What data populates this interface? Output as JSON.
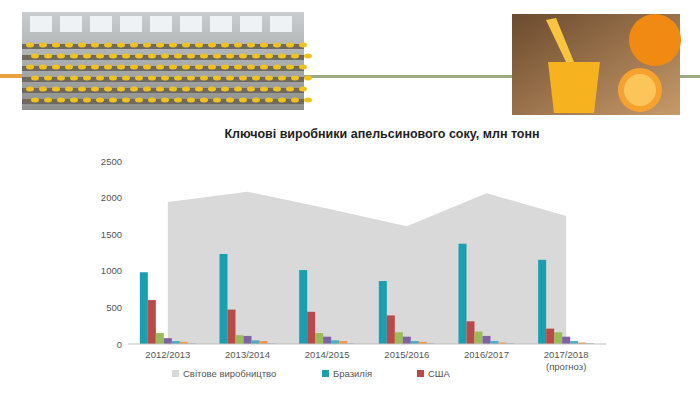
{
  "chart_data": {
    "type": "bar",
    "title": "Ключові виробники апельсинового соку, млн тонн",
    "categories": [
      "2012/2013",
      "2013/2014",
      "2014/2015",
      "2015/2016",
      "2016/2017",
      "2017/2018\n(прогноз)"
    ],
    "series": [
      {
        "name": "Світове виробництво",
        "type": "area",
        "color": "#d9d9d9",
        "values": [
          1940,
          2080,
          1850,
          1610,
          2060,
          1750
        ]
      },
      {
        "name": "Бразилія",
        "type": "bar",
        "color": "#1a9fb0",
        "values": [
          980,
          1230,
          1010,
          860,
          1370,
          1150
        ]
      },
      {
        "name": "США",
        "type": "bar",
        "color": "#b94a48",
        "values": [
          600,
          470,
          440,
          390,
          310,
          210
        ]
      },
      {
        "type": "bar",
        "color": "#9bbb59",
        "values": [
          150,
          120,
          150,
          160,
          170,
          160
        ]
      },
      {
        "type": "bar",
        "color": "#7e62a1",
        "values": [
          80,
          110,
          100,
          100,
          110,
          100
        ]
      },
      {
        "type": "bar",
        "color": "#4bacc6",
        "values": [
          40,
          50,
          50,
          40,
          40,
          40
        ]
      },
      {
        "type": "bar",
        "color": "#f79646",
        "values": [
          30,
          40,
          40,
          30,
          20,
          20
        ]
      },
      {
        "type": "bar",
        "color": "#95b3d7",
        "values": [
          10,
          10,
          10,
          10,
          10,
          10
        ]
      }
    ],
    "ylim": [
      0,
      2500
    ],
    "yticks": [
      0,
      500,
      1000,
      1500,
      2000,
      2500
    ],
    "grid": false,
    "legend": "bottom"
  }
}
